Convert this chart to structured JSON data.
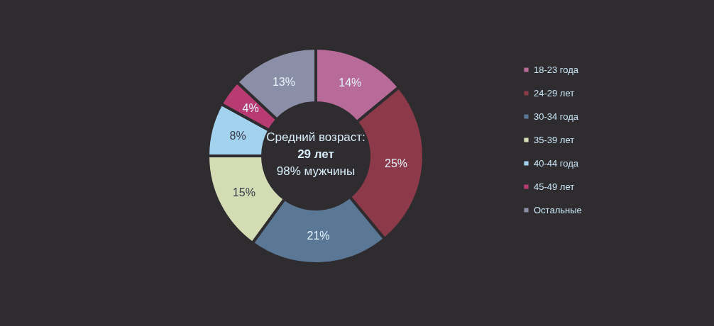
{
  "chart_data": {
    "type": "donut",
    "categories": [
      "18-23 года",
      "24-29 лет",
      "30-34 года",
      "35-39 лет",
      "40-44 года",
      "45-49 лет",
      "Остальные"
    ],
    "values": [
      14,
      25,
      21,
      15,
      8,
      4,
      13
    ],
    "colors": [
      "#b86a98",
      "#8c3a4a",
      "#5a7896",
      "#d4dcb4",
      "#a2d2ee",
      "#b83c72",
      "#8a8ea6"
    ],
    "value_labels": [
      "14%",
      "25%",
      "21%",
      "15%",
      "8%",
      "4%",
      "13%"
    ],
    "annotations": [
      "Средний возраст:",
      "29 лет",
      "98% мужчины"
    ],
    "legend": "right"
  }
}
